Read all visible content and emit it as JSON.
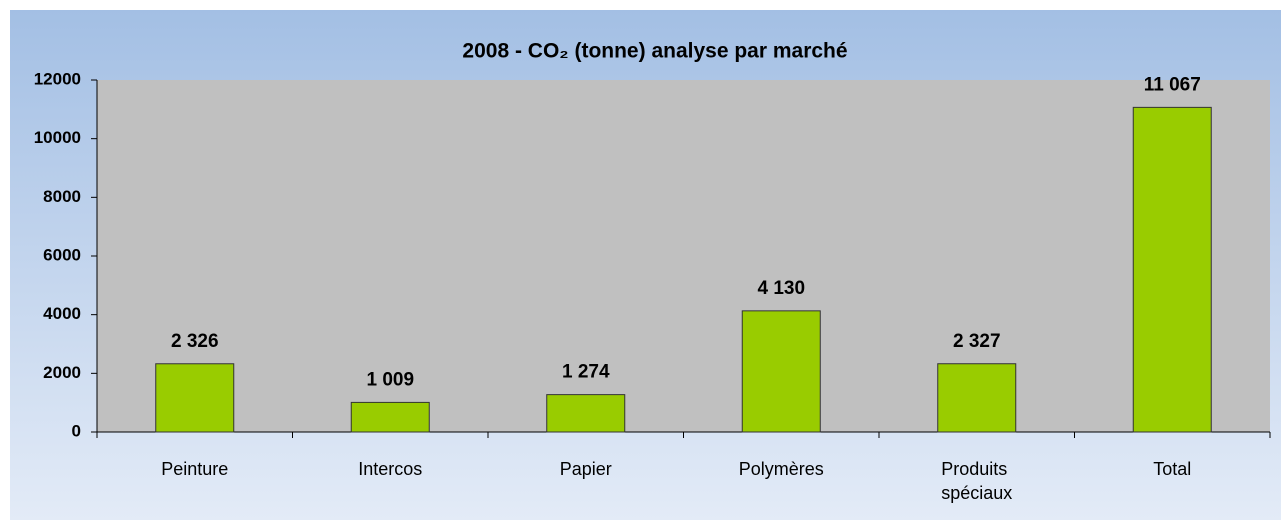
{
  "chart_data": {
    "type": "bar",
    "title": "2008 - CO₂ (tonne) analyse par marché",
    "categories": [
      "Peinture",
      "Intercos",
      "Papier",
      "Polymères",
      "Produits spéciaux",
      "Total"
    ],
    "values": [
      2326,
      1009,
      1274,
      4130,
      2327,
      11067
    ],
    "value_labels": [
      "2 326",
      "1 009",
      "1 274",
      "4 130",
      "2 327",
      "11 067"
    ],
    "color": "#99cc00",
    "ylim": [
      0,
      12000
    ],
    "yticks": [
      0,
      2000,
      4000,
      6000,
      8000,
      10000,
      12000
    ],
    "grid": false
  }
}
